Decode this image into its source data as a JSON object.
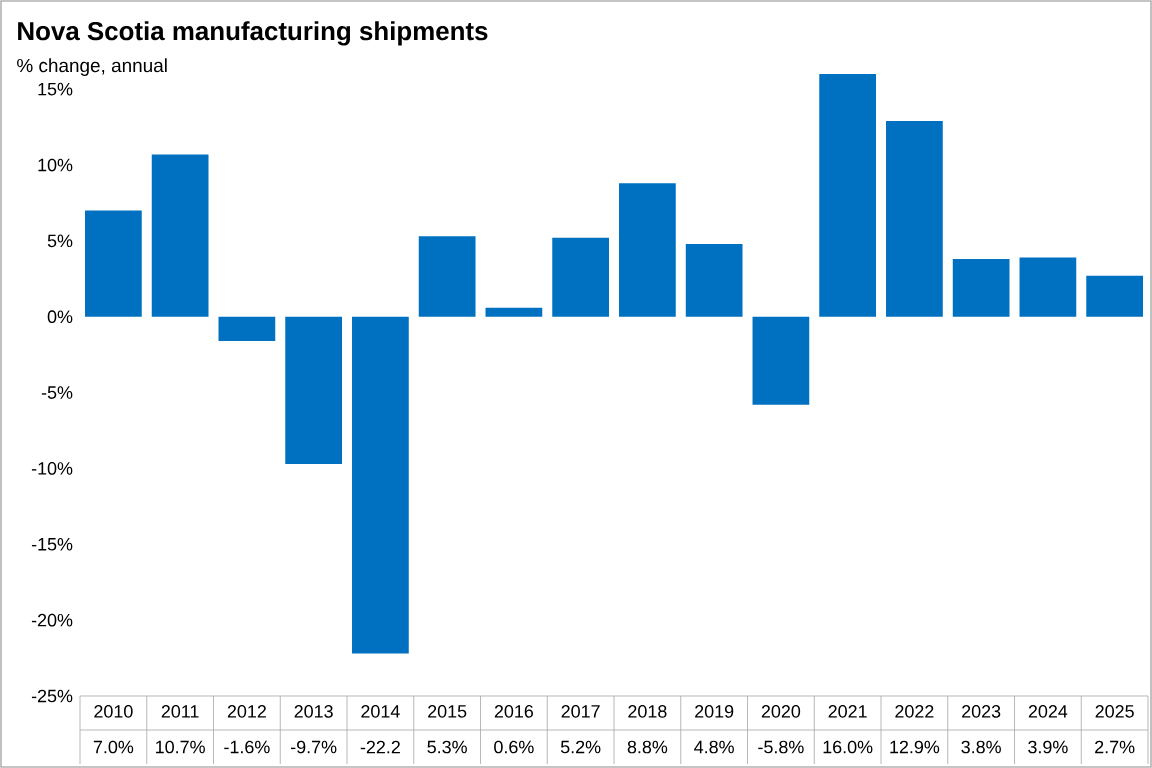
{
  "chart_data": {
    "type": "bar",
    "title": "Nova Scotia manufacturing shipments",
    "subtitle": "% change, annual",
    "categories": [
      "2010",
      "2011",
      "2012",
      "2013",
      "2014",
      "2015",
      "2016",
      "2017",
      "2018",
      "2019",
      "2020",
      "2021",
      "2022",
      "2023",
      "2024",
      "2025"
    ],
    "values": [
      7.0,
      10.7,
      -1.6,
      -9.7,
      -22.2,
      5.3,
      0.6,
      5.2,
      8.8,
      4.8,
      -5.8,
      16.0,
      12.9,
      3.8,
      3.9,
      2.7
    ],
    "value_labels": [
      "7.0%",
      "10.7%",
      "-1.6%",
      "-9.7%",
      "-22.2",
      "5.3%",
      "0.6%",
      "5.2%",
      "8.8%",
      "4.8%",
      "-5.8%",
      "16.0%",
      "12.9%",
      "3.8%",
      "3.9%",
      "2.7%"
    ],
    "color": "#0070c0",
    "ylim": [
      -25,
      16
    ],
    "yticks": [
      {
        "value": -25,
        "label": "-25%"
      },
      {
        "value": -20,
        "label": "-20%"
      },
      {
        "value": -15,
        "label": "-15%"
      },
      {
        "value": -10,
        "label": "-10%"
      },
      {
        "value": -5,
        "label": "-5%"
      },
      {
        "value": 0,
        "label": "0%"
      },
      {
        "value": 5,
        "label": "5%"
      },
      {
        "value": 10,
        "label": "10%"
      },
      {
        "value": 15,
        "label": "15%"
      }
    ]
  }
}
